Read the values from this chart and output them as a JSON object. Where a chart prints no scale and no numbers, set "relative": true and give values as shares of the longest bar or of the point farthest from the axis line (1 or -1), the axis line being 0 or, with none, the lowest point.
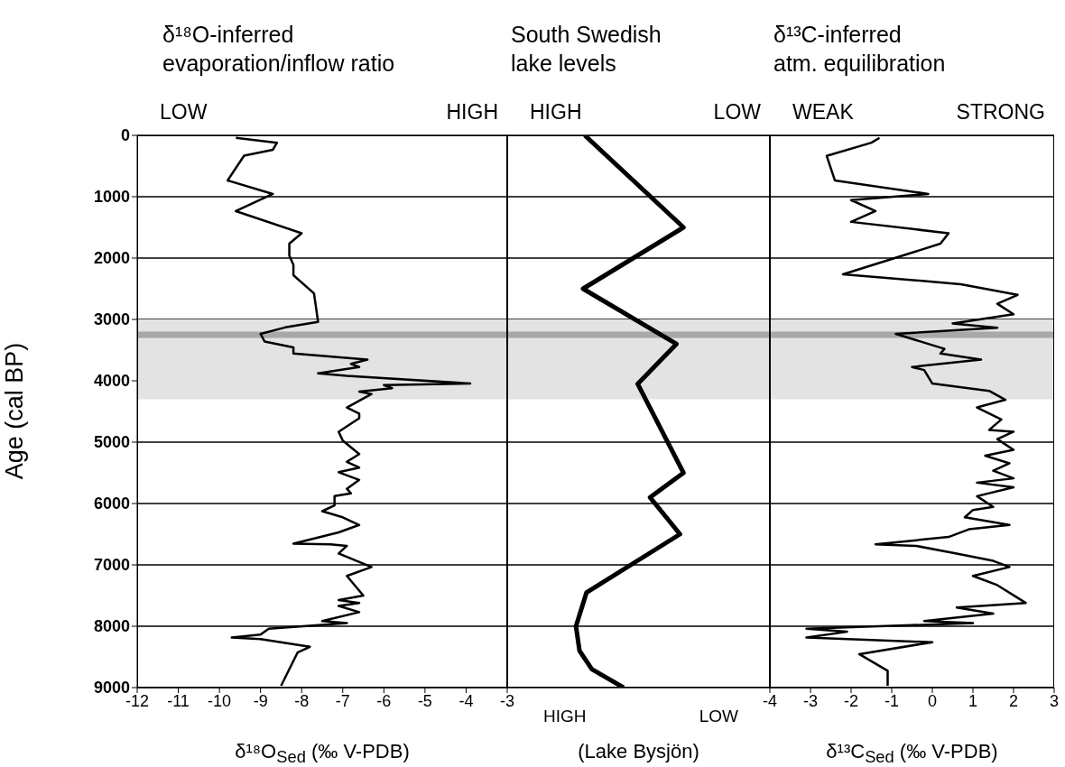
{
  "chart_data": [
    {
      "type": "line",
      "orientation": "horizontal",
      "title": "δ¹⁸O-inferred\nevaporation/inflow ratio",
      "xlabel": "δ¹⁸O$_{Sed}$ (‰ V-PDB)",
      "ylabel": "Age (cal BP)",
      "annotations": [
        "LOW",
        "HIGH"
      ],
      "xlim": [
        -12,
        -3
      ],
      "xticks": [
        -12,
        -11,
        -10,
        -9,
        -8,
        -7,
        -6,
        -5,
        -4,
        -3
      ],
      "ylim": [
        9000,
        0
      ],
      "yticks": [
        0,
        1000,
        2000,
        3000,
        4000,
        5000,
        6000,
        7000,
        8000,
        9000
      ],
      "grid": "y",
      "bands": [
        {
          "axis": "y",
          "from": 3000,
          "to": 4300,
          "color": "#e3e3e3"
        },
        {
          "axis": "y",
          "from": 3200,
          "to": 3300,
          "color": "#a8a8a8"
        }
      ],
      "series": [
        {
          "color": "#000000",
          "x": [
            40,
            120,
            235,
            330,
            735,
            955,
            1235,
            1595,
            1765,
            1960,
            2110,
            2280,
            2575,
            3040,
            3130,
            3235,
            3360,
            3455,
            3555,
            3655,
            3725,
            3775,
            3880,
            3920,
            4045,
            4070,
            4120,
            4175,
            4215,
            4435,
            4535,
            4610,
            4830,
            4975,
            5195,
            5320,
            5415,
            5490,
            5615,
            5760,
            5835,
            5880,
            6030,
            6125,
            6225,
            6350,
            6470,
            6655,
            6665,
            6690,
            6815,
            7035,
            7180,
            7500,
            7575,
            7620,
            7670,
            7770,
            7915,
            7950,
            8040,
            8135,
            8185,
            8210,
            8335,
            8430,
            8970
          ],
          "values": [
            -9.6,
            -8.6,
            -8.7,
            -9.4,
            -9.8,
            -8.7,
            -9.6,
            -8.0,
            -8.3,
            -8.3,
            -8.2,
            -8.2,
            -7.7,
            -7.6,
            -8.4,
            -9.0,
            -8.9,
            -8.2,
            -8.2,
            -6.4,
            -6.8,
            -6.6,
            -7.6,
            -6.9,
            -3.9,
            -6.0,
            -5.8,
            -6.6,
            -6.3,
            -6.9,
            -6.6,
            -6.6,
            -7.1,
            -7.0,
            -6.6,
            -6.9,
            -6.6,
            -7.1,
            -6.6,
            -6.9,
            -6.8,
            -7.2,
            -7.2,
            -7.5,
            -7.0,
            -6.6,
            -7.1,
            -8.2,
            -7.3,
            -6.9,
            -7.1,
            -6.3,
            -6.9,
            -6.5,
            -7.1,
            -6.6,
            -7.1,
            -6.6,
            -7.5,
            -6.9,
            -8.8,
            -9.0,
            -9.7,
            -9.0,
            -7.8,
            -8.1,
            -8.5
          ]
        }
      ]
    },
    {
      "type": "line",
      "orientation": "horizontal",
      "relative": true,
      "title": "South Swedish\nlake levels",
      "xlabel": "(Lake Bysjön)",
      "annotations": [
        "HIGH",
        "LOW",
        "HIGH",
        "LOW"
      ],
      "ylim": [
        9000,
        0
      ],
      "yticks": [
        0,
        1000,
        2000,
        3000,
        4000,
        5000,
        6000,
        7000,
        8000,
        9000
      ],
      "tick_labels": false,
      "grid": "y",
      "bands": [
        {
          "axis": "y",
          "from": 3000,
          "to": 4300,
          "color": "#e3e3e3"
        },
        {
          "axis": "y",
          "from": 3200,
          "to": 3300,
          "color": "#a8a8a8"
        }
      ],
      "series": [
        {
          "color": "#000000",
          "x": [
            0,
            1500,
            2500,
            3400,
            4050,
            5500,
            5900,
            6500,
            7450,
            8000,
            8400,
            8700,
            9000
          ],
          "values": [
            0.44,
            1,
            0.43,
            0.96,
            0.74,
            1,
            0.81,
            0.98,
            0.45,
            0.39,
            0.41,
            0.48,
            0.66
          ]
        }
      ]
    },
    {
      "type": "line",
      "orientation": "horizontal",
      "title": "δ¹³C-inferred\natm. equilibration",
      "xlabel": "δ¹³C$_{Sed}$ (‰ V-PDB)",
      "annotations": [
        "WEAK",
        "STRONG"
      ],
      "xlim": [
        -4,
        3
      ],
      "xticks": [
        -4,
        -3,
        -2,
        -1,
        0,
        1,
        2,
        3
      ],
      "ylim": [
        9000,
        0
      ],
      "yticks": [
        0,
        1000,
        2000,
        3000,
        4000,
        5000,
        6000,
        7000,
        8000,
        9000
      ],
      "tick_labels": "x",
      "grid": "y",
      "bands": [
        {
          "axis": "y",
          "from": 3000,
          "to": 4300,
          "color": "#e3e3e3"
        },
        {
          "axis": "y",
          "from": 3200,
          "to": 3300,
          "color": "#a8a8a8"
        }
      ],
      "series": [
        {
          "color": "#000000",
          "x": [
            40,
            120,
            335,
            735,
            955,
            1055,
            1235,
            1410,
            1595,
            1765,
            2265,
            2425,
            2600,
            2745,
            2915,
            3065,
            3135,
            3235,
            3480,
            3555,
            3655,
            3775,
            3825,
            4045,
            4165,
            4310,
            4435,
            4630,
            4800,
            4830,
            4950,
            5125,
            5220,
            5345,
            5465,
            5590,
            5660,
            5735,
            5880,
            6055,
            6105,
            6225,
            6350,
            6420,
            6545,
            6665,
            6690,
            6815,
            6935,
            7035,
            7180,
            7330,
            7620,
            7695,
            7795,
            7915,
            7950,
            8040,
            8090,
            8185,
            8260,
            8455,
            8725,
            8970
          ],
          "values": [
            -1.3,
            -1.5,
            -2.6,
            -2.4,
            -0.1,
            -2.0,
            -1.4,
            -2.0,
            0.4,
            0.2,
            -2.2,
            0.7,
            2.1,
            1.6,
            2.0,
            0.5,
            1.6,
            -0.9,
            0.3,
            0.2,
            1.2,
            -0.5,
            -0.2,
            0.0,
            1.4,
            1.8,
            1.1,
            1.7,
            1.4,
            2.0,
            1.6,
            2.0,
            1.3,
            1.9,
            1.5,
            2.0,
            1.1,
            2.0,
            1.1,
            1.5,
            1.0,
            0.8,
            1.9,
            0.9,
            0.4,
            -1.4,
            -0.4,
            0.6,
            1.5,
            1.9,
            1.0,
            1.6,
            2.3,
            0.6,
            1.5,
            -0.2,
            1.0,
            -3.1,
            -2.1,
            -3.1,
            0.0,
            -1.8,
            -1.1,
            -1.1
          ]
        }
      ]
    }
  ]
}
